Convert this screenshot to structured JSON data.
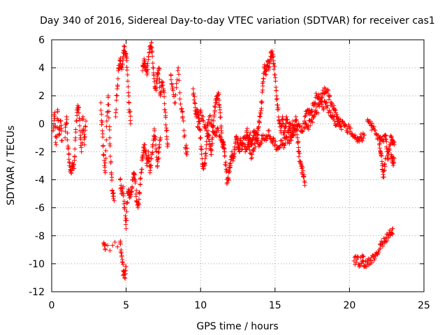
{
  "chart_data": {
    "type": "scatter",
    "title": "Day 340 of 2016, Sidereal Day-to-day VTEC variation (SDTVAR) for receiver cas1",
    "xlabel": "GPS time / hours",
    "ylabel": "SDTVAR / TECUs",
    "xlim": [
      0,
      25
    ],
    "ylim": [
      -12,
      6
    ],
    "xticks": [
      0,
      5,
      10,
      15,
      20,
      25
    ],
    "yticks": [
      -12,
      -10,
      -8,
      -6,
      -4,
      -2,
      0,
      2,
      4,
      6
    ],
    "grid": true,
    "marker": "+",
    "color": "#ff0000",
    "trace_segments": [
      [
        [
          0.1,
          -0.5
        ],
        [
          0.2,
          0.8
        ],
        [
          0.3,
          -1.5
        ],
        [
          0.4,
          1.0
        ],
        [
          0.5,
          -0.8
        ],
        [
          0.6,
          0.2
        ],
        [
          0.7,
          -1.2
        ]
      ],
      [
        [
          0.9,
          -1.0
        ],
        [
          1.0,
          0.5
        ],
        [
          1.1,
          -1.8
        ],
        [
          1.2,
          -3.0
        ],
        [
          1.3,
          -3.5
        ],
        [
          1.4,
          -2.8
        ],
        [
          1.5,
          -3.2
        ],
        [
          1.6,
          -1.0
        ],
        [
          1.7,
          0.8
        ],
        [
          1.8,
          1.2
        ],
        [
          1.9,
          -0.5
        ],
        [
          2.0,
          -2.0
        ],
        [
          2.1,
          0.5
        ],
        [
          2.2,
          -1.5
        ],
        [
          2.3,
          0.2
        ]
      ],
      [
        [
          3.3,
          1.5
        ],
        [
          3.4,
          -0.5
        ],
        [
          3.5,
          -2.2
        ],
        [
          3.6,
          -3.5
        ],
        [
          3.7,
          0.2
        ],
        [
          3.8,
          2.0
        ],
        [
          3.9,
          -1.0
        ],
        [
          4.0,
          -3.5
        ],
        [
          4.1,
          -5.0
        ],
        [
          4.2,
          -5.5
        ]
      ],
      [
        [
          4.3,
          0.5
        ],
        [
          4.4,
          2.5
        ],
        [
          4.5,
          4.0
        ],
        [
          4.6,
          4.5
        ],
        [
          4.7,
          4.0
        ],
        [
          4.8,
          4.8
        ],
        [
          4.9,
          5.5
        ],
        [
          5.0,
          5.0
        ],
        [
          5.1,
          3.5
        ],
        [
          5.2,
          1.5
        ],
        [
          5.3,
          0.0
        ]
      ],
      [
        [
          4.6,
          -4.0
        ],
        [
          4.7,
          -5.0
        ],
        [
          4.8,
          -4.5
        ],
        [
          4.9,
          -6.0
        ],
        [
          5.0,
          -7.5
        ],
        [
          5.1,
          -5.0
        ],
        [
          5.2,
          -4.8
        ],
        [
          5.3,
          -5.2
        ],
        [
          5.4,
          -4.5
        ],
        [
          5.5,
          -3.5
        ],
        [
          5.6,
          -4.0
        ],
        [
          5.7,
          -5.5
        ],
        [
          5.8,
          -6.0
        ],
        [
          5.9,
          -5.0
        ],
        [
          6.0,
          -3.5
        ],
        [
          6.1,
          -2.5
        ],
        [
          6.2,
          -1.5
        ],
        [
          6.3,
          -2.0
        ],
        [
          6.4,
          -3.0
        ],
        [
          6.5,
          -2.0
        ],
        [
          6.6,
          -3.5
        ],
        [
          6.7,
          -2.5
        ],
        [
          6.8,
          -1.5
        ],
        [
          6.9,
          -0.5
        ],
        [
          7.0,
          -1.8
        ],
        [
          7.1,
          -3.0
        ],
        [
          7.2,
          -2.0
        ],
        [
          7.3,
          -1.0
        ]
      ],
      [
        [
          6.1,
          3.8
        ],
        [
          6.2,
          4.5
        ],
        [
          6.3,
          4.0
        ],
        [
          6.4,
          3.5
        ],
        [
          6.5,
          4.8
        ],
        [
          6.6,
          5.5
        ],
        [
          6.7,
          5.8
        ],
        [
          6.8,
          4.0
        ],
        [
          6.9,
          3.0
        ],
        [
          7.0,
          2.5
        ],
        [
          7.1,
          3.5
        ],
        [
          7.2,
          4.0
        ],
        [
          7.3,
          2.0
        ],
        [
          7.4,
          3.0
        ],
        [
          7.5,
          2.5
        ],
        [
          7.6,
          1.0
        ],
        [
          7.7,
          -0.5
        ],
        [
          7.8,
          -1.5
        ]
      ],
      [
        [
          8.0,
          3.5
        ],
        [
          8.1,
          2.5
        ],
        [
          8.3,
          1.5
        ],
        [
          8.5,
          4.0
        ],
        [
          8.7,
          1.0
        ],
        [
          8.8,
          0.5
        ],
        [
          9.0,
          -1.8
        ],
        [
          9.1,
          -2.0
        ]
      ],
      [
        [
          9.5,
          2.5
        ],
        [
          9.6,
          1.5
        ],
        [
          9.7,
          0.5
        ],
        [
          9.8,
          1.0
        ],
        [
          9.9,
          0.0
        ],
        [
          10.0,
          -1.0
        ],
        [
          10.1,
          -2.5
        ],
        [
          10.2,
          -3.2
        ],
        [
          10.3,
          -2.8
        ],
        [
          10.4,
          -1.5
        ],
        [
          10.5,
          -0.5
        ],
        [
          10.6,
          -1.5
        ],
        [
          10.7,
          -2.2
        ],
        [
          10.8,
          -1.0
        ],
        [
          10.9,
          0.5
        ],
        [
          11.0,
          1.5
        ],
        [
          11.1,
          1.8
        ],
        [
          11.2,
          2.2
        ],
        [
          11.3,
          1.0
        ],
        [
          11.4,
          -0.5
        ],
        [
          11.5,
          -1.5
        ],
        [
          11.6,
          -2.0
        ],
        [
          11.7,
          -3.0
        ],
        [
          11.8,
          -4.2
        ],
        [
          11.9,
          -3.5
        ],
        [
          12.0,
          -3.0
        ],
        [
          12.1,
          -2.0
        ],
        [
          12.2,
          -2.5
        ],
        [
          12.3,
          -1.8
        ],
        [
          12.4,
          -1.0
        ],
        [
          12.5,
          -1.5
        ],
        [
          12.6,
          -2.0
        ],
        [
          12.7,
          -1.2
        ],
        [
          12.8,
          -1.8
        ],
        [
          12.9,
          -1.0
        ],
        [
          13.0,
          -1.5
        ],
        [
          13.1,
          -0.5
        ],
        [
          13.2,
          -1.2
        ],
        [
          13.3,
          -0.8
        ],
        [
          13.4,
          -1.5
        ],
        [
          13.5,
          -1.0
        ],
        [
          13.6,
          -0.5
        ],
        [
          13.7,
          -1.0
        ],
        [
          13.8,
          -0.8
        ],
        [
          13.9,
          -0.2
        ],
        [
          14.0,
          0.5
        ],
        [
          14.1,
          1.5
        ],
        [
          14.2,
          3.0
        ],
        [
          14.3,
          4.0
        ],
        [
          14.4,
          3.5
        ],
        [
          14.5,
          4.5
        ],
        [
          14.6,
          4.0
        ],
        [
          14.7,
          4.8
        ],
        [
          14.8,
          5.2
        ],
        [
          14.9,
          4.5
        ],
        [
          15.0,
          3.5
        ],
        [
          15.1,
          2.0
        ],
        [
          15.2,
          1.0
        ],
        [
          15.3,
          0.0
        ],
        [
          15.4,
          -0.5
        ],
        [
          15.5,
          0.5
        ],
        [
          15.6,
          -0.8
        ],
        [
          15.7,
          -0.2
        ],
        [
          15.8,
          0.3
        ],
        [
          15.9,
          -0.5
        ],
        [
          16.0,
          0.0
        ],
        [
          16.1,
          -1.0
        ],
        [
          16.2,
          0.2
        ],
        [
          16.3,
          -0.5
        ],
        [
          16.4,
          0.5
        ],
        [
          16.5,
          -1.0
        ],
        [
          16.6,
          -2.0
        ],
        [
          16.7,
          -2.8
        ],
        [
          16.8,
          -3.2
        ],
        [
          16.9,
          -3.8
        ],
        [
          17.0,
          -4.2
        ]
      ]
    ],
    "trace_segments_2": [
      [
        [
          9.8,
          -0.2
        ],
        [
          10.0,
          0.8
        ],
        [
          10.2,
          0.2
        ],
        [
          10.4,
          -0.5
        ],
        [
          10.6,
          0.5
        ],
        [
          10.8,
          -0.2
        ],
        [
          11.0,
          -0.8
        ],
        [
          11.2,
          -0.5
        ],
        [
          11.4,
          -1.2
        ],
        [
          11.6,
          -1.8
        ]
      ],
      [
        [
          13.0,
          -2.0
        ],
        [
          13.2,
          -1.5
        ],
        [
          13.4,
          -2.5
        ],
        [
          13.6,
          -1.8
        ],
        [
          13.8,
          -1.0
        ],
        [
          14.0,
          -1.5
        ],
        [
          14.2,
          -0.8
        ],
        [
          14.4,
          -1.2
        ],
        [
          14.6,
          -0.5
        ],
        [
          14.8,
          -1.2
        ],
        [
          15.0,
          -1.5
        ],
        [
          15.2,
          -1.8
        ],
        [
          15.4,
          -1.2
        ],
        [
          15.6,
          -1.5
        ],
        [
          15.8,
          -1.0
        ],
        [
          16.0,
          -1.2
        ],
        [
          16.2,
          -0.8
        ],
        [
          16.4,
          -0.5
        ],
        [
          16.6,
          0.0
        ],
        [
          16.8,
          -0.5
        ],
        [
          17.0,
          0.0
        ],
        [
          17.2,
          -0.3
        ],
        [
          17.4,
          0.2
        ],
        [
          17.6,
          0.5
        ],
        [
          17.8,
          0.8
        ],
        [
          18.0,
          1.5
        ],
        [
          18.2,
          2.2
        ],
        [
          18.4,
          2.5
        ],
        [
          18.6,
          2.0
        ],
        [
          18.8,
          1.5
        ],
        [
          19.0,
          1.0
        ],
        [
          19.2,
          0.5
        ],
        [
          19.4,
          -0.2
        ],
        [
          19.6,
          0.0
        ],
        [
          19.8,
          -0.5
        ],
        [
          20.0,
          -0.3
        ],
        [
          20.2,
          -0.8
        ],
        [
          20.4,
          -1.0
        ],
        [
          20.6,
          -1.2
        ],
        [
          20.8,
          -1.0
        ],
        [
          21.0,
          -0.8
        ]
      ],
      [
        [
          17.0,
          0.5
        ],
        [
          17.2,
          1.0
        ],
        [
          17.4,
          0.8
        ],
        [
          17.6,
          1.5
        ],
        [
          17.8,
          2.0
        ],
        [
          18.0,
          1.8
        ],
        [
          18.2,
          1.2
        ],
        [
          18.4,
          1.5
        ],
        [
          18.6,
          0.8
        ],
        [
          18.8,
          0.5
        ],
        [
          19.0,
          0.2
        ],
        [
          19.2,
          0.0
        ],
        [
          19.4,
          0.3
        ]
      ],
      [
        [
          21.2,
          0.2
        ],
        [
          21.4,
          0.0
        ],
        [
          21.6,
          -0.3
        ],
        [
          21.8,
          -0.8
        ],
        [
          22.0,
          -1.0
        ],
        [
          22.2,
          -1.2
        ],
        [
          22.4,
          -0.8
        ],
        [
          22.5,
          -1.8
        ],
        [
          22.6,
          -2.5
        ],
        [
          22.7,
          -1.5
        ],
        [
          22.8,
          -1.0
        ],
        [
          22.9,
          -1.2
        ],
        [
          23.0,
          -1.5
        ]
      ],
      [
        [
          22.0,
          -1.5
        ],
        [
          22.1,
          -2.0
        ],
        [
          22.2,
          -3.0
        ],
        [
          22.3,
          -3.8
        ],
        [
          22.4,
          -2.5
        ]
      ],
      [
        [
          22.8,
          -2.2
        ],
        [
          22.9,
          -2.8
        ],
        [
          23.0,
          -2.5
        ]
      ],
      [
        [
          20.3,
          -9.8
        ],
        [
          20.5,
          -9.7
        ],
        [
          20.7,
          -10.0
        ],
        [
          20.9,
          -9.5
        ],
        [
          21.0,
          -10.2
        ],
        [
          21.2,
          -9.8
        ],
        [
          21.4,
          -10.0
        ],
        [
          21.6,
          -9.5
        ],
        [
          21.8,
          -9.2
        ],
        [
          22.0,
          -9.0
        ],
        [
          22.2,
          -8.5
        ],
        [
          22.4,
          -8.2
        ],
        [
          22.6,
          -8.0
        ],
        [
          22.8,
          -7.8
        ],
        [
          22.9,
          -7.5
        ]
      ],
      [
        [
          3.5,
          -8.5
        ],
        [
          3.6,
          -9.0
        ],
        [
          4.6,
          -8.5
        ],
        [
          4.7,
          -9.5
        ],
        [
          4.8,
          -10.5
        ],
        [
          4.9,
          -11.0
        ],
        [
          5.0,
          -10.2
        ]
      ]
    ]
  }
}
